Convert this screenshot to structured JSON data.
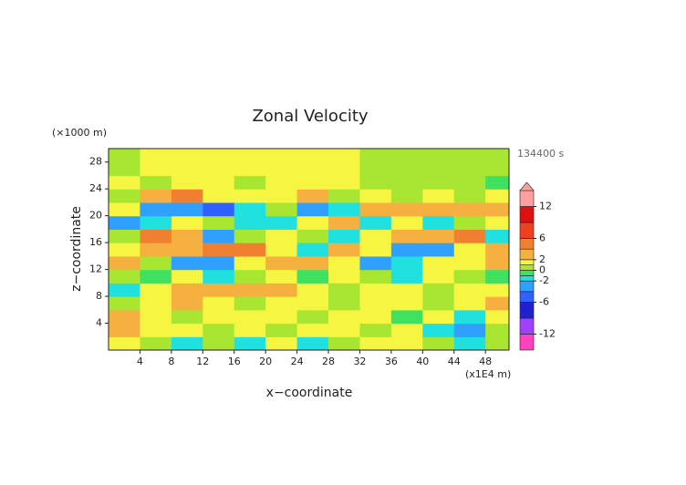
{
  "chart_data": {
    "type": "contour",
    "title": "Zonal Velocity",
    "xlabel": "x−coordinate",
    "ylabel": "z−coordinate",
    "x_unit": "(x1E4 m)",
    "y_unit": "(×1000 m)",
    "time_label": "134400 s",
    "x": [
      2,
      6,
      10,
      14,
      18,
      22,
      26,
      30,
      34,
      38,
      42,
      46,
      50
    ],
    "y": [
      1,
      3,
      5,
      7,
      9,
      11,
      13,
      15,
      17,
      19,
      21,
      23,
      25,
      27,
      29
    ],
    "z": [
      [
        1.5,
        0.5,
        -1.5,
        0.5,
        -1.5,
        1.5,
        -1.5,
        0.5,
        1.5,
        1.5,
        0.5,
        -1.5,
        0.5
      ],
      [
        3,
        1.5,
        1.5,
        0.5,
        1.5,
        0.5,
        1.5,
        1.5,
        0.5,
        1.5,
        -1.5,
        -3,
        0.5
      ],
      [
        3,
        1.5,
        0.5,
        1.5,
        1.5,
        1.5,
        0.5,
        1.5,
        1.5,
        -0.5,
        1.5,
        -1.5,
        1.5
      ],
      [
        0.5,
        1.5,
        3,
        1.5,
        0.5,
        1.5,
        1.5,
        0.5,
        1.5,
        1.5,
        0.5,
        1.5,
        3
      ],
      [
        -1.5,
        1.5,
        3,
        3,
        3,
        3,
        1.5,
        0.5,
        1.5,
        1.5,
        0.5,
        1.5,
        1.5
      ],
      [
        0.5,
        -0.5,
        1.5,
        -1.5,
        0.5,
        1.5,
        -0.5,
        1.5,
        0.5,
        -1.5,
        1.5,
        0.5,
        -0.5
      ],
      [
        3,
        0.5,
        -3,
        -3,
        1.5,
        3,
        3,
        1.5,
        -3,
        -1.5,
        1.5,
        1.5,
        3
      ],
      [
        1.5,
        3,
        3,
        5,
        5,
        1.5,
        -1.5,
        3,
        1.5,
        -3,
        -3,
        1.5,
        3
      ],
      [
        0.5,
        5,
        3,
        -3,
        0.5,
        1.5,
        0.5,
        -1.5,
        1.5,
        3,
        3,
        5,
        -1.5
      ],
      [
        -3,
        -1.5,
        1.5,
        0.5,
        -1.5,
        -1.5,
        1.5,
        3,
        -1.5,
        1.5,
        -1.5,
        0.5,
        1.5
      ],
      [
        1.5,
        -3,
        -3,
        -5,
        -1.5,
        0.5,
        -3,
        -1.5,
        3,
        3,
        3,
        3,
        3
      ],
      [
        0.5,
        3,
        5,
        1.5,
        1.5,
        1.5,
        3,
        0.5,
        1.5,
        0.5,
        1.5,
        0.5,
        1.5
      ],
      [
        1.5,
        0.5,
        1.5,
        1.5,
        0.5,
        1.5,
        1.5,
        1.5,
        0.5,
        0.5,
        0.5,
        0.5,
        -0.5
      ],
      [
        0.5,
        1.5,
        1.5,
        1.5,
        1.5,
        1.5,
        1.5,
        1.5,
        0.5,
        0.5,
        0.5,
        0.5,
        0.5
      ],
      [
        0.5,
        1.5,
        1.5,
        1.5,
        1.5,
        1.5,
        1.5,
        1.5,
        0.5,
        0.5,
        0.5,
        0.5,
        0.5
      ]
    ],
    "xlim": [
      0,
      51
    ],
    "ylim": [
      0,
      30
    ],
    "xticks": [
      4,
      8,
      12,
      16,
      20,
      24,
      28,
      32,
      36,
      40,
      44,
      48
    ],
    "yticks": [
      4,
      8,
      12,
      16,
      20,
      24,
      28
    ],
    "colorbar": {
      "lim": [
        -15,
        15
      ],
      "ticks": [
        -12,
        -6,
        -2,
        0,
        2,
        6,
        12
      ],
      "levels": [
        -15,
        -12,
        -9,
        -6,
        -4,
        -2,
        -1,
        0,
        1,
        2,
        4,
        6,
        9,
        12,
        15
      ],
      "colors": [
        "#ff40c0",
        "#a040ff",
        "#2020d0",
        "#3060ff",
        "#30a0ff",
        "#20e0e0",
        "#40e060",
        "#a8e632",
        "#f5f542",
        "#f5b040",
        "#f08030",
        "#f04020",
        "#e01010",
        "#ffa0a0"
      ]
    }
  }
}
